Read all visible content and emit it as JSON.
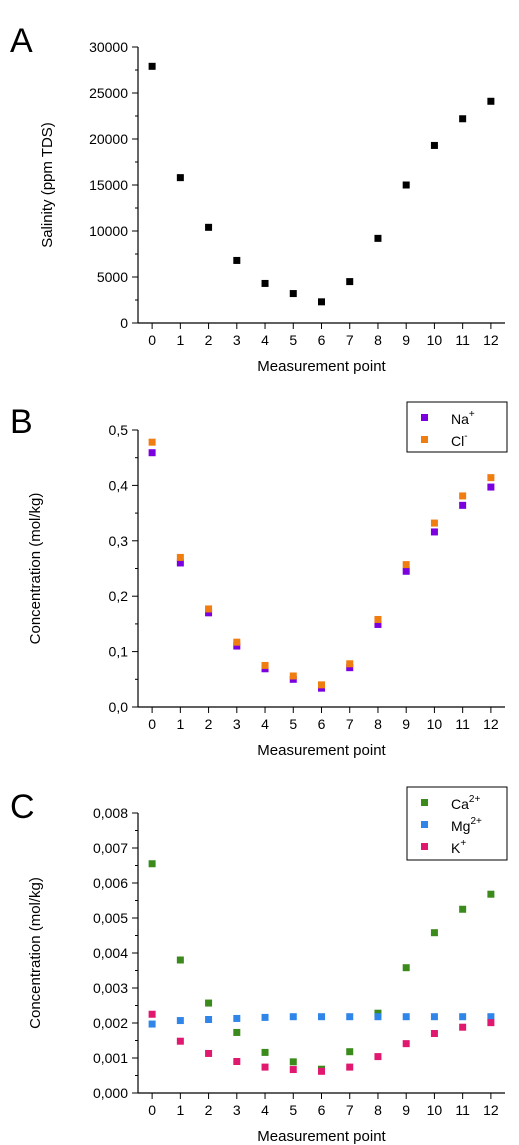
{
  "chart_data": [
    {
      "type": "scatter",
      "panel_label": "A",
      "xlabel": "Measurement point",
      "ylabel": "Salinity (ppm TDS)",
      "xlim": [
        -0.5,
        12.5
      ],
      "ylim": [
        0,
        30000
      ],
      "xticks": [
        0,
        1,
        2,
        3,
        4,
        5,
        6,
        7,
        8,
        9,
        10,
        11,
        12
      ],
      "xtick_labels": [
        "0",
        "1",
        "2",
        "3",
        "4",
        "5",
        "6",
        "7",
        "8",
        "9",
        "10",
        "11",
        "12"
      ],
      "yticks": [
        0,
        5000,
        10000,
        15000,
        20000,
        25000,
        30000
      ],
      "ytick_labels": [
        "0",
        "5000",
        "10000",
        "15000",
        "20000",
        "25000",
        "30000"
      ],
      "grid": false,
      "legend": null,
      "series": [
        {
          "color": "#000000",
          "x": [
            0,
            1,
            2,
            3,
            4,
            5,
            6,
            7,
            8,
            9,
            10,
            11,
            12
          ],
          "y": [
            27900,
            15800,
            10400,
            6800,
            4300,
            3200,
            2300,
            4500,
            9200,
            15000,
            19300,
            22200,
            24100
          ]
        }
      ]
    },
    {
      "type": "scatter",
      "panel_label": "B",
      "xlabel": "Measurement point",
      "ylabel": "Concentration (mol/kg)",
      "xlim": [
        -0.5,
        12.5
      ],
      "ylim": [
        0,
        0.5
      ],
      "xticks": [
        0,
        1,
        2,
        3,
        4,
        5,
        6,
        7,
        8,
        9,
        10,
        11,
        12
      ],
      "xtick_labels": [
        "0",
        "1",
        "2",
        "3",
        "4",
        "5",
        "6",
        "7",
        "8",
        "9",
        "10",
        "11",
        "12"
      ],
      "yticks": [
        0,
        0.1,
        0.2,
        0.3,
        0.4,
        0.5
      ],
      "ytick_labels": [
        "0,0",
        "0,1",
        "0,2",
        "0,3",
        "0,4",
        "0,5"
      ],
      "grid": false,
      "legend": "top-right",
      "series": [
        {
          "name": "Na",
          "sup": "+",
          "color": "#7b00e0",
          "x": [
            0,
            1,
            2,
            3,
            4,
            5,
            6,
            7,
            8,
            9,
            10,
            11,
            12
          ],
          "y": [
            0.459,
            0.26,
            0.17,
            0.11,
            0.069,
            0.05,
            0.034,
            0.071,
            0.149,
            0.245,
            0.316,
            0.364,
            0.397
          ]
        },
        {
          "name": "Cl",
          "sup": "-",
          "color": "#f07d10",
          "x": [
            0,
            1,
            2,
            3,
            4,
            5,
            6,
            7,
            8,
            9,
            10,
            11,
            12
          ],
          "y": [
            0.478,
            0.27,
            0.177,
            0.117,
            0.075,
            0.056,
            0.04,
            0.078,
            0.158,
            0.257,
            0.332,
            0.381,
            0.414
          ]
        }
      ]
    },
    {
      "type": "scatter",
      "panel_label": "C",
      "xlabel": "Measurement point",
      "ylabel": "Concentration (mol/kg)",
      "xlim": [
        -0.5,
        12.5
      ],
      "ylim": [
        0,
        0.008
      ],
      "xticks": [
        0,
        1,
        2,
        3,
        4,
        5,
        6,
        7,
        8,
        9,
        10,
        11,
        12
      ],
      "xtick_labels": [
        "0",
        "1",
        "2",
        "3",
        "4",
        "5",
        "6",
        "7",
        "8",
        "9",
        "10",
        "11",
        "12"
      ],
      "yticks": [
        0,
        0.001,
        0.002,
        0.003,
        0.004,
        0.005,
        0.006,
        0.007,
        0.008
      ],
      "ytick_labels": [
        "0,000",
        "0,001",
        "0,002",
        "0,003",
        "0,004",
        "0,005",
        "0,006",
        "0,007",
        "0,008"
      ],
      "grid": false,
      "legend": "top-right",
      "series": [
        {
          "name": "Ca",
          "sup": "2+",
          "color": "#3a8a1c",
          "x": [
            0,
            1,
            2,
            3,
            4,
            5,
            6,
            7,
            8,
            9,
            10,
            11,
            12
          ],
          "y": [
            0.00655,
            0.0038,
            0.00257,
            0.00173,
            0.00116,
            0.00089,
            0.00068,
            0.00118,
            0.00228,
            0.00358,
            0.00458,
            0.00525,
            0.00568
          ]
        },
        {
          "name": "Mg",
          "sup": "2+",
          "color": "#2f86e8",
          "x": [
            0,
            1,
            2,
            3,
            4,
            5,
            6,
            7,
            8,
            9,
            10,
            11,
            12
          ],
          "y": [
            0.00197,
            0.00207,
            0.0021,
            0.00213,
            0.00216,
            0.00218,
            0.00218,
            0.00218,
            0.00218,
            0.00218,
            0.00218,
            0.00218,
            0.00218
          ]
        },
        {
          "name": "K",
          "sup": "+",
          "color": "#e0186f",
          "x": [
            0,
            1,
            2,
            3,
            4,
            5,
            6,
            7,
            8,
            9,
            10,
            11,
            12
          ],
          "y": [
            0.00225,
            0.00148,
            0.00113,
            0.0009,
            0.00074,
            0.00067,
            0.00062,
            0.00074,
            0.00104,
            0.00141,
            0.0017,
            0.00188,
            0.00201
          ]
        }
      ]
    }
  ]
}
